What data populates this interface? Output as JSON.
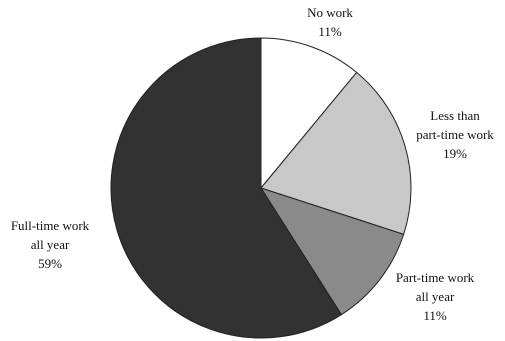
{
  "chart_data": {
    "type": "pie",
    "start_angle_deg": 0,
    "direction": "clockwise",
    "slices": [
      {
        "label": [
          "No work",
          "11%"
        ],
        "value": 11,
        "color": "#ffffff"
      },
      {
        "label": [
          "Less than",
          "part-time work",
          "19%"
        ],
        "value": 19,
        "color": "#c8c8c8"
      },
      {
        "label": [
          "Part-time work",
          "all year",
          "11%"
        ],
        "value": 11,
        "color": "#8a8a8a"
      },
      {
        "label": [
          "Full-time work",
          "all year",
          "59%"
        ],
        "value": 59,
        "color": "#323232"
      }
    ],
    "stroke_color": "#222222"
  }
}
